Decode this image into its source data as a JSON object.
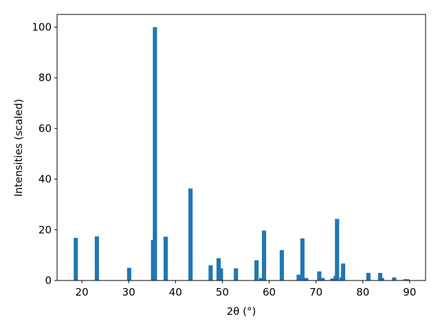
{
  "chart_data": {
    "type": "bar",
    "xlabel": "2θ (°)",
    "ylabel": "Intensities (scaled)",
    "x": [
      18.7,
      23.2,
      30.1,
      35.2,
      35.6,
      37.9,
      43.2,
      47.5,
      49.2,
      49.7,
      52.9,
      57.3,
      58.3,
      58.9,
      62.7,
      66.3,
      67.1,
      67.9,
      70.7,
      71.4,
      73.5,
      74.2,
      74.5,
      75.5,
      75.8,
      81.2,
      83.7,
      84.1,
      86.7,
      89.1,
      89.5
    ],
    "values": [
      16.8,
      17.4,
      5,
      16,
      100,
      17.3,
      36.3,
      6,
      8.8,
      4.8,
      4.8,
      8,
      1,
      19.7,
      12,
      2.3,
      16.6,
      1,
      3.6,
      1,
      0.8,
      1.8,
      24.3,
      1.3,
      6.7,
      3,
      3,
      1,
      1.2,
      0.5,
      0.5
    ],
    "color": "#1f77b4",
    "xlim": [
      14.7,
      93.4
    ],
    "xticks": [
      20,
      30,
      40,
      50,
      60,
      70,
      80,
      90
    ],
    "ylim": [
      0,
      105
    ],
    "yticks": [
      0,
      20,
      40,
      60,
      80,
      100
    ]
  }
}
